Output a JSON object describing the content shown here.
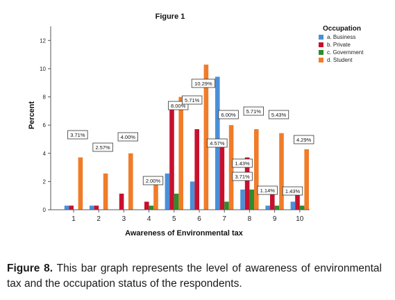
{
  "chart_data": {
    "type": "bar",
    "title": "Figure 1",
    "xlabel": "Awareness of Environmental tax",
    "ylabel": "Percent",
    "ylim": [
      0,
      13
    ],
    "yticks": [
      0,
      2,
      4,
      6,
      8,
      10,
      12
    ],
    "categories": [
      "1",
      "2",
      "3",
      "4",
      "5",
      "6",
      "7",
      "8",
      "9",
      "10"
    ],
    "legend": {
      "title": "Occupation",
      "placement": "top-right"
    },
    "series": [
      {
        "name": "a. Business",
        "color": "#4a90d9",
        "values": [
          0.29,
          0.29,
          0,
          0,
          2.57,
          2.0,
          9.43,
          1.43,
          0.29,
          0.57
        ]
      },
      {
        "name": "b. Private",
        "color": "#c8102e",
        "values": [
          0.29,
          0.29,
          1.14,
          0.57,
          7.14,
          5.71,
          4.57,
          3.71,
          1.14,
          1.43
        ]
      },
      {
        "name": "c. Government",
        "color": "#2e8b2e",
        "values": [
          0,
          0,
          0,
          0.29,
          1.14,
          0,
          0.57,
          1.43,
          0.29,
          0.29
        ]
      },
      {
        "name": "d. Student",
        "color": "#f07c2a",
        "values": [
          3.71,
          2.57,
          4.0,
          2.0,
          8.0,
          10.29,
          6.0,
          5.71,
          5.43,
          4.29
        ]
      }
    ],
    "data_labels": [
      "3.71%",
      "2.57%",
      "4.00%",
      "2.00%",
      "8.00%",
      "10.29%",
      "6.00%",
      "5.71%",
      "5.43%",
      "4.29%",
      "5.71%",
      "4.57%",
      "1.43%",
      "3.71%",
      "1.14%",
      "1.43%"
    ]
  },
  "caption": {
    "figure_label": "Figure 8.",
    "text": "This bar graph represents the level of awareness of environmental tax and the occupation status of the respondents."
  }
}
